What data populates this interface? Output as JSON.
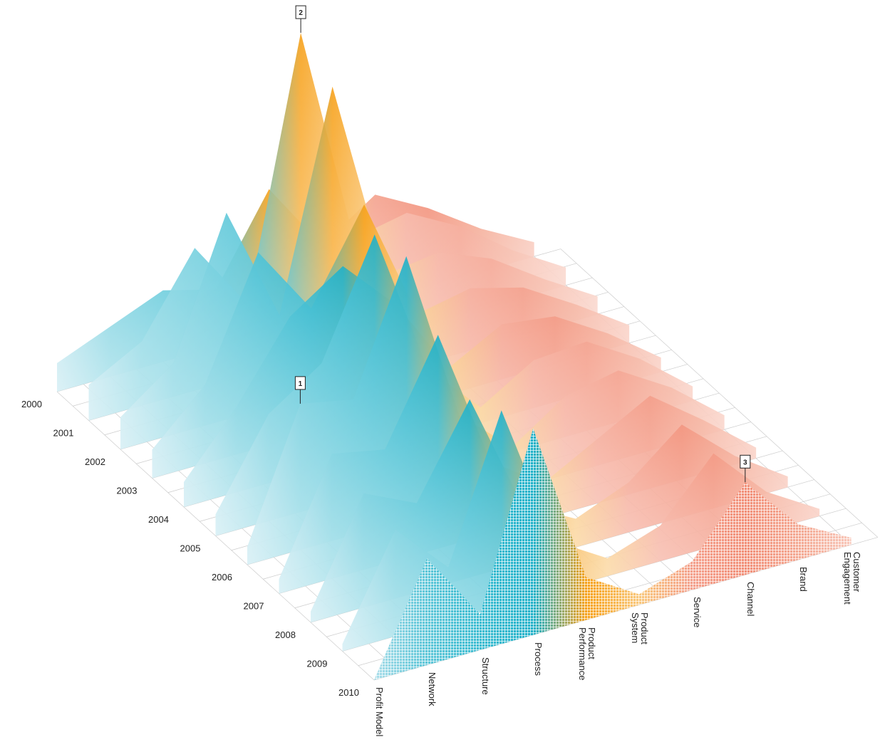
{
  "chart_data": {
    "type": "surface3d",
    "years": [
      "2000",
      "2001",
      "2002",
      "2003",
      "2004",
      "2005",
      "2006",
      "2007",
      "2008",
      "2009",
      "2010"
    ],
    "categories": [
      "Profit Model",
      "Network",
      "Structure",
      "Process",
      "Product\nPerformance",
      "Product\nSystem",
      "Service",
      "Channel",
      "Brand",
      "Customer\nEngagement"
    ],
    "colors": [
      "#a9dde9",
      "#5cc6d8",
      "#3bbcd1",
      "#1fb1c9",
      "#f7a11a",
      "#f9c77a",
      "#f4a08c",
      "#f28f78",
      "#f4a892",
      "#f8c6b8"
    ],
    "values": [
      [
        8,
        14,
        20,
        16,
        40,
        20,
        30,
        22,
        12,
        4
      ],
      [
        10,
        18,
        40,
        20,
        92,
        30,
        33,
        25,
        14,
        5
      ],
      [
        9,
        20,
        58,
        25,
        85,
        28,
        30,
        24,
        14,
        5
      ],
      [
        8,
        22,
        55,
        35,
        60,
        25,
        28,
        24,
        15,
        5
      ],
      [
        7,
        24,
        45,
        55,
        40,
        18,
        26,
        24,
        15,
        4
      ],
      [
        6,
        30,
        40,
        72,
        30,
        15,
        24,
        25,
        16,
        4
      ],
      [
        5,
        41,
        38,
        74,
        25,
        12,
        22,
        25,
        16,
        4
      ],
      [
        4,
        35,
        32,
        60,
        20,
        10,
        18,
        26,
        15,
        3
      ],
      [
        3,
        32,
        25,
        50,
        16,
        8,
        14,
        26,
        13,
        3
      ],
      [
        2,
        30,
        15,
        55,
        14,
        5,
        10,
        26,
        11,
        2
      ],
      [
        0,
        30,
        10,
        58,
        12,
        3,
        8,
        26,
        10,
        2
      ]
    ],
    "annotations": [
      "1",
      "2",
      "3"
    ]
  }
}
